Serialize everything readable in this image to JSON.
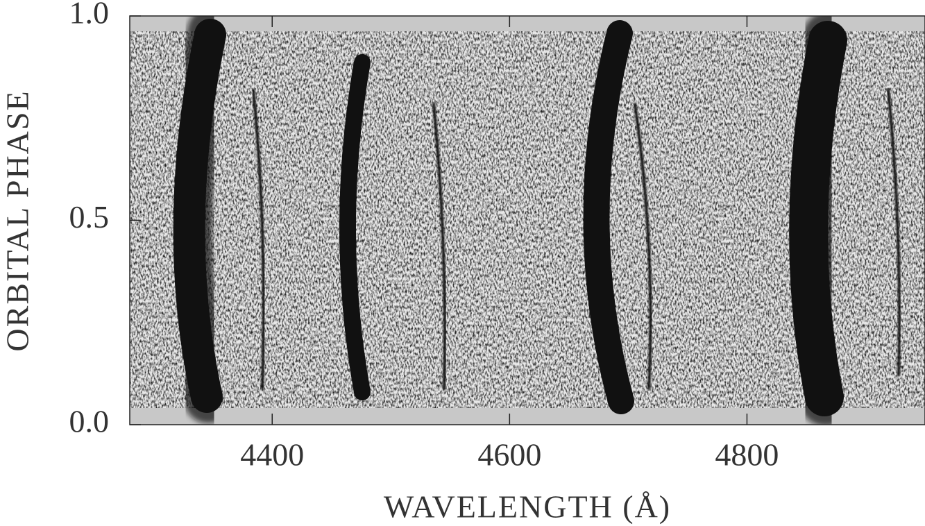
{
  "chart_data": {
    "type": "trailed-spectrogram",
    "xlabel": "WAVELENGTH (Å)",
    "ylabel": "ORBITAL PHASE",
    "xlim": [
      4280,
      4950
    ],
    "ylim": [
      0,
      1
    ],
    "xticks": [
      4400,
      4600,
      4800
    ],
    "yticks": [
      {
        "value": 0,
        "label": "0.0"
      },
      0.5,
      {
        "value": 1,
        "label": "1.0"
      }
    ]
  }
}
